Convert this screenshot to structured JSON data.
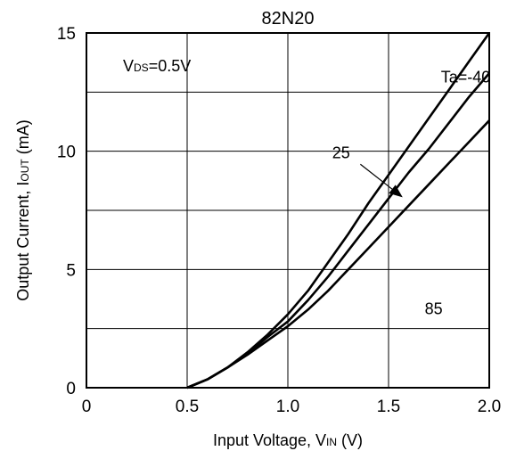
{
  "chart_data": {
    "type": "line",
    "title": "82N20",
    "xlabel": {
      "main": "Input Voltage, V",
      "sub": "IN",
      "unit": " (V)"
    },
    "ylabel": {
      "main": "Output Current, I",
      "sub": "OUT",
      "unit": " (mA)"
    },
    "xlim": [
      0,
      2.0
    ],
    "ylim": [
      0,
      15
    ],
    "x_ticks": [
      0,
      0.5,
      1.0,
      1.5,
      2.0
    ],
    "x_tick_labels": [
      "0",
      "0.5",
      "1.0",
      "1.5",
      "2.0"
    ],
    "y_ticks": [
      0,
      5,
      10,
      15
    ],
    "y_tick_labels": [
      "0",
      "5",
      "10",
      "15"
    ],
    "x_grid": [
      0.5,
      1.0,
      1.5
    ],
    "y_grid": [
      2.5,
      5,
      7.5,
      10,
      12.5
    ],
    "grid": true,
    "condition": {
      "main": "V",
      "sub": "DS",
      "rest": "=0.5V"
    },
    "series": [
      {
        "name": "Ta=-40",
        "x": [
          0.5,
          0.6,
          0.7,
          0.8,
          0.9,
          1.0,
          1.1,
          1.2,
          1.3,
          1.4,
          1.5,
          1.6,
          1.7,
          1.8,
          1.9,
          2.0
        ],
        "y": [
          0,
          0.35,
          0.85,
          1.5,
          2.25,
          3.1,
          4.1,
          5.3,
          6.5,
          7.8,
          9.0,
          10.2,
          11.4,
          12.6,
          13.8,
          15.0
        ]
      },
      {
        "name": "25",
        "x": [
          0.5,
          0.6,
          0.7,
          0.8,
          0.9,
          1.0,
          1.1,
          1.2,
          1.3,
          1.4,
          1.5,
          1.6,
          1.7,
          1.8,
          1.9,
          2.0
        ],
        "y": [
          0,
          0.35,
          0.85,
          1.45,
          2.15,
          2.8,
          3.7,
          4.7,
          5.8,
          6.9,
          8.0,
          9.1,
          10.1,
          11.2,
          12.3,
          13.3
        ]
      },
      {
        "name": "85",
        "x": [
          0.5,
          0.6,
          0.7,
          0.8,
          0.9,
          1.0,
          1.1,
          1.2,
          1.3,
          1.4,
          1.5,
          1.6,
          1.7,
          1.8,
          1.9,
          2.0
        ],
        "y": [
          0,
          0.35,
          0.85,
          1.4,
          2.0,
          2.6,
          3.3,
          4.1,
          5.0,
          5.9,
          6.8,
          7.7,
          8.6,
          9.5,
          10.4,
          11.3
        ]
      }
    ],
    "annotations": [
      {
        "text": "Ta=-40",
        "x": 1.76,
        "y": 12.9
      },
      {
        "text": "25",
        "x": 1.22,
        "y": 9.7
      },
      {
        "text": "85",
        "x": 1.68,
        "y": 3.1
      }
    ],
    "arrow": {
      "from": [
        1.36,
        9.45
      ],
      "to": [
        1.57,
        8.05
      ]
    }
  }
}
